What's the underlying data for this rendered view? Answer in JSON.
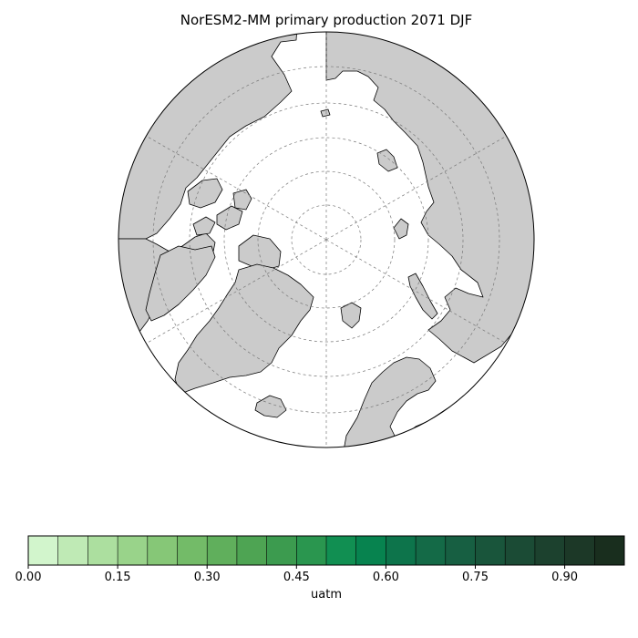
{
  "figure": {
    "title": "NorESM2-MM primary production 2071 DJF"
  },
  "map": {
    "projection": "north-polar-stereographic",
    "land_color": "#cbcbcb",
    "ocean_color": "#ffffff",
    "gridlines": true
  },
  "colorbar": {
    "label": "uatm",
    "vmin": 0.0,
    "vmax": 1.0,
    "ticks": [
      {
        "value": 0.0,
        "label": "0.00"
      },
      {
        "value": 0.15,
        "label": "0.15"
      },
      {
        "value": 0.3,
        "label": "0.30"
      },
      {
        "value": 0.45,
        "label": "0.45"
      },
      {
        "value": 0.6,
        "label": "0.60"
      },
      {
        "value": 0.75,
        "label": "0.75"
      },
      {
        "value": 0.9,
        "label": "0.90"
      }
    ],
    "colors": [
      "#d2f5cc",
      "#bfeab5",
      "#acdf9f",
      "#99d38a",
      "#86c777",
      "#73bb68",
      "#60af5c",
      "#4ea453",
      "#3c9b4f",
      "#2a964f",
      "#118f52",
      "#07834f",
      "#0d744b",
      "#146a47",
      "#175f42",
      "#19553b",
      "#1b4b35",
      "#1c412e",
      "#1c3827",
      "#192e1e"
    ]
  }
}
